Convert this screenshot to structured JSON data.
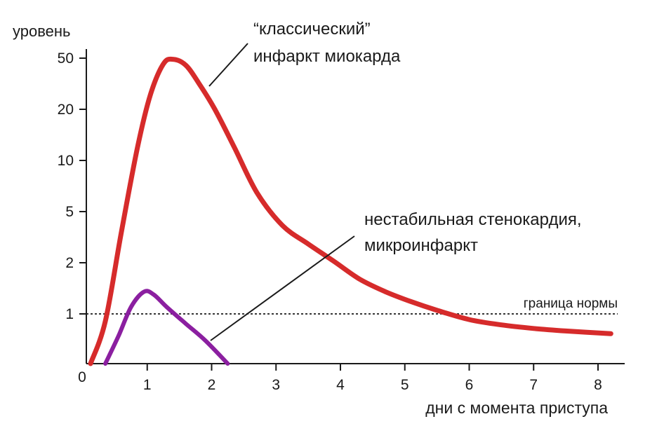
{
  "chart_data": {
    "type": "line",
    "ylabel": "уровень",
    "xlabel": "дни с момента приступа",
    "origin_label": "0",
    "x_ticks": [
      "1",
      "2",
      "3",
      "4",
      "5",
      "6",
      "7",
      "8"
    ],
    "y_ticks": [
      "1",
      "2",
      "5",
      "10",
      "20",
      "50"
    ],
    "y_tick_values": [
      1,
      2,
      5,
      10,
      20,
      50
    ],
    "y_scale": "log",
    "xlim": [
      0,
      8.4
    ],
    "grid": false,
    "threshold": {
      "value": 1,
      "label": "граница нормы"
    },
    "series": [
      {
        "name": "“классический” инфаркт миокарда",
        "color": "#d62b2b",
        "x": [
          0.12,
          0.35,
          0.6,
          0.85,
          1.05,
          1.25,
          1.4,
          1.6,
          1.8,
          2.05,
          2.35,
          2.7,
          3.1,
          3.5,
          3.9,
          4.3,
          4.7,
          5.1,
          5.5,
          6.0,
          6.5,
          7.0,
          7.5,
          8.2
        ],
        "y": [
          0.2,
          0.85,
          3.5,
          12,
          26,
          45,
          49,
          44,
          32,
          20,
          12,
          6.5,
          3.9,
          2.8,
          2.05,
          1.6,
          1.35,
          1.18,
          1.05,
          0.88,
          0.78,
          0.72,
          0.68,
          0.64
        ],
        "label_lines": [
          "“классический”",
          "инфаркт миокарда"
        ]
      },
      {
        "name": "нестабильная стенокардия, микроинфаркт",
        "color": "#8b1fa0",
        "x": [
          0.35,
          0.55,
          0.75,
          0.95,
          1.1,
          1.3,
          1.6,
          1.9,
          2.25
        ],
        "y": [
          0.3,
          0.6,
          1.1,
          1.35,
          1.3,
          1.1,
          0.8,
          0.55,
          0.32
        ],
        "label_lines": [
          "нестабильная стенокардия,",
          "микроинфаркт"
        ]
      }
    ]
  }
}
